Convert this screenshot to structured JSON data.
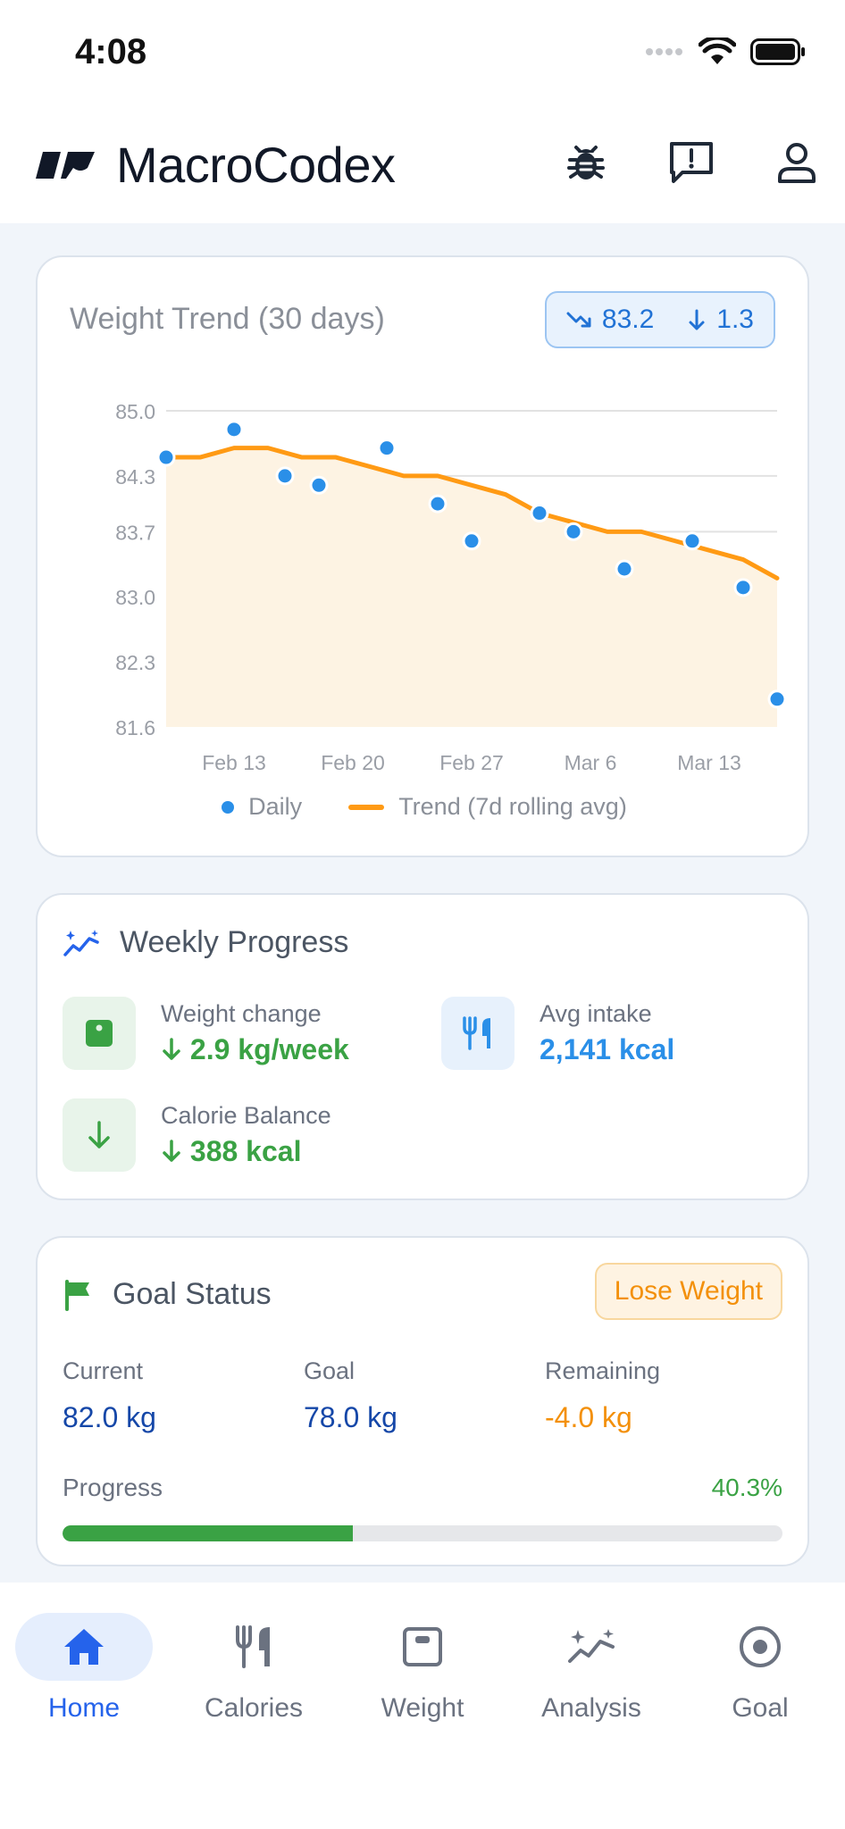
{
  "status": {
    "time": "4:08"
  },
  "header": {
    "app_title": "MacroCodex"
  },
  "trend": {
    "title": "Weight Trend (30 days)",
    "badge_trend": "83.2",
    "badge_change": "1.3",
    "legend_daily": "Daily",
    "legend_trend": "Trend (7d rolling avg)"
  },
  "chart_data": {
    "type": "line",
    "y_ticks": [
      "85.0",
      "84.3",
      "83.7",
      "83.0",
      "82.3",
      "81.6"
    ],
    "x_ticks": [
      "Feb 13",
      "Feb 20",
      "Feb 27",
      "Mar 6",
      "Mar 13"
    ],
    "ylim": [
      81.6,
      85.0
    ],
    "grid": true,
    "legend_position": "bottom",
    "series": [
      {
        "name": "Daily",
        "kind": "scatter",
        "color": "#2A8FE8",
        "points": [
          {
            "x": "Feb 9",
            "y": 84.5
          },
          {
            "x": "Feb 13",
            "y": 84.8
          },
          {
            "x": "Feb 16",
            "y": 84.3
          },
          {
            "x": "Feb 18",
            "y": 84.2
          },
          {
            "x": "Feb 22",
            "y": 84.6
          },
          {
            "x": "Feb 25",
            "y": 84.0
          },
          {
            "x": "Feb 27",
            "y": 83.6
          },
          {
            "x": "Mar 3",
            "y": 83.9
          },
          {
            "x": "Mar 5",
            "y": 83.7
          },
          {
            "x": "Mar 8",
            "y": 83.3
          },
          {
            "x": "Mar 12",
            "y": 83.6
          },
          {
            "x": "Mar 15",
            "y": 83.1
          },
          {
            "x": "Mar 17",
            "y": 81.9
          }
        ]
      },
      {
        "name": "Trend (7d rolling avg)",
        "kind": "line",
        "color": "#FF9A14",
        "fill": "#FDF3E3",
        "points": [
          {
            "x": "Feb 9",
            "y": 84.5
          },
          {
            "x": "Feb 11",
            "y": 84.5
          },
          {
            "x": "Feb 13",
            "y": 84.6
          },
          {
            "x": "Feb 15",
            "y": 84.6
          },
          {
            "x": "Feb 17",
            "y": 84.5
          },
          {
            "x": "Feb 19",
            "y": 84.5
          },
          {
            "x": "Feb 21",
            "y": 84.4
          },
          {
            "x": "Feb 23",
            "y": 84.3
          },
          {
            "x": "Feb 25",
            "y": 84.3
          },
          {
            "x": "Feb 27",
            "y": 84.2
          },
          {
            "x": "Mar 1",
            "y": 84.1
          },
          {
            "x": "Mar 3",
            "y": 83.9
          },
          {
            "x": "Mar 5",
            "y": 83.8
          },
          {
            "x": "Mar 7",
            "y": 83.7
          },
          {
            "x": "Mar 9",
            "y": 83.7
          },
          {
            "x": "Mar 11",
            "y": 83.6
          },
          {
            "x": "Mar 13",
            "y": 83.5
          },
          {
            "x": "Mar 15",
            "y": 83.4
          },
          {
            "x": "Mar 17",
            "y": 83.2
          }
        ]
      }
    ]
  },
  "weekly": {
    "title": "Weekly Progress",
    "weight_change_label": "Weight change",
    "weight_change_value": "2.9 kg/week",
    "avg_intake_label": "Avg intake",
    "avg_intake_value": "2,141 kcal",
    "calorie_balance_label": "Calorie Balance",
    "calorie_balance_value": "388 kcal"
  },
  "goal": {
    "title": "Goal Status",
    "type": "Lose Weight",
    "current_label": "Current",
    "current_value": "82.0 kg",
    "goal_label": "Goal",
    "goal_value": "78.0 kg",
    "remaining_label": "Remaining",
    "remaining_value": "-4.0 kg",
    "progress_label": "Progress",
    "progress_pct": "40.3%",
    "progress_fraction": 0.403
  },
  "tabs": [
    {
      "label": "Home",
      "icon": "home-icon",
      "active": true
    },
    {
      "label": "Calories",
      "icon": "fork-knife-icon",
      "active": false
    },
    {
      "label": "Weight",
      "icon": "scale-icon",
      "active": false
    },
    {
      "label": "Analysis",
      "icon": "sparkle-chart-icon",
      "active": false
    },
    {
      "label": "Goal",
      "icon": "target-icon",
      "active": false
    }
  ],
  "colors": {
    "accent": "#2563EB",
    "green": "#3AA244",
    "orange": "#F3900B",
    "blue": "#2A8FE8"
  }
}
